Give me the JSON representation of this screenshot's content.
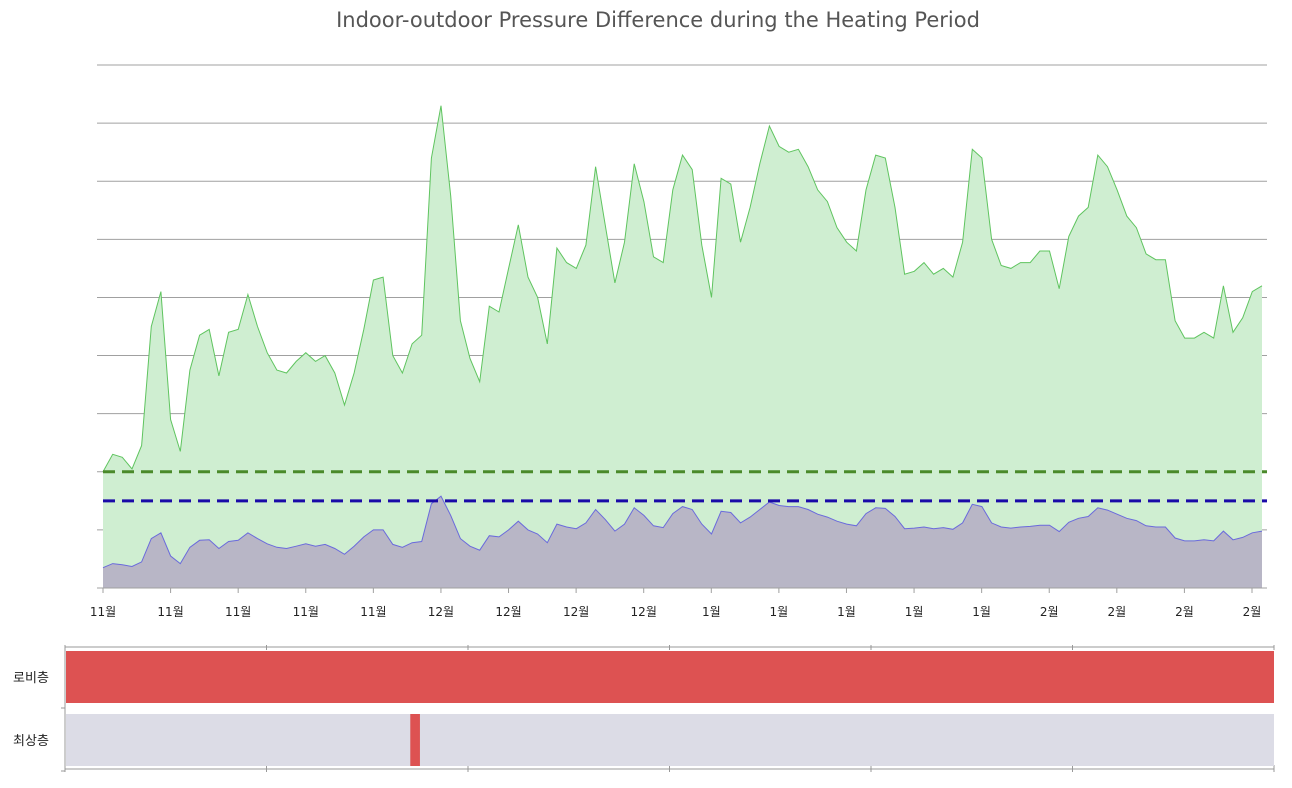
{
  "chart_data": [
    {
      "type": "area",
      "title": "Indoor-outdoor Pressure Difference during the Heating Period",
      "ylim": [
        0,
        9
      ],
      "grid": true,
      "x_tick_labels": [
        "11월",
        "11월",
        "11월",
        "11월",
        "11월",
        "12월",
        "12월",
        "12월",
        "12월",
        "1월",
        "1월",
        "1월",
        "1월",
        "1월",
        "2월",
        "2월",
        "2월",
        "2월"
      ],
      "reference_lines": [
        {
          "y": 2.0,
          "style": "dashed",
          "color": "#4a8a2a"
        },
        {
          "y": 1.5,
          "style": "dashed",
          "color": "#1a0aa8"
        }
      ],
      "series": [
        {
          "color": "#5fc45f",
          "fill": "#cfeed1",
          "values": [
            2.0,
            2.3,
            2.25,
            2.05,
            2.45,
            4.5,
            5.1,
            2.9,
            2.35,
            3.75,
            4.35,
            4.45,
            3.65,
            4.4,
            4.45,
            5.05,
            4.5,
            4.05,
            3.75,
            3.7,
            3.9,
            4.05,
            3.9,
            4.0,
            3.7,
            3.15,
            3.7,
            4.45,
            5.3,
            5.35,
            4.0,
            3.7,
            4.2,
            4.35,
            7.4,
            8.3,
            6.75,
            4.6,
            3.95,
            3.55,
            4.85,
            4.75,
            5.5,
            6.25,
            5.35,
            5.0,
            4.2,
            5.85,
            5.6,
            5.5,
            5.9,
            7.25,
            6.25,
            5.25,
            5.95,
            7.3,
            6.65,
            5.7,
            5.6,
            6.85,
            7.45,
            7.2,
            5.9,
            5.0,
            7.05,
            6.95,
            5.95,
            6.55,
            7.3,
            7.95,
            7.6,
            7.5,
            7.55,
            7.25,
            6.85,
            6.65,
            6.2,
            5.95,
            5.8,
            6.85,
            7.45,
            7.4,
            6.55,
            5.4,
            5.45,
            5.6,
            5.4,
            5.5,
            5.35,
            5.95,
            7.55,
            7.4,
            6.0,
            5.55,
            5.5,
            5.6,
            5.6,
            5.8,
            5.8,
            5.15,
            6.05,
            6.4,
            6.55,
            7.45,
            7.25,
            6.85,
            6.4,
            6.2,
            5.75,
            5.65,
            5.65,
            4.6,
            4.3,
            4.3,
            4.4,
            4.3,
            5.2,
            4.4,
            4.65,
            5.1,
            5.2
          ]
        },
        {
          "color": "#6a6adc",
          "fill": "#b8b6c6",
          "values": [
            0.35,
            0.42,
            0.4,
            0.37,
            0.45,
            0.85,
            0.95,
            0.55,
            0.42,
            0.7,
            0.82,
            0.83,
            0.68,
            0.8,
            0.82,
            0.95,
            0.85,
            0.76,
            0.7,
            0.68,
            0.72,
            0.76,
            0.72,
            0.75,
            0.68,
            0.58,
            0.72,
            0.88,
            1.0,
            1.0,
            0.75,
            0.7,
            0.78,
            0.8,
            1.45,
            1.58,
            1.25,
            0.85,
            0.72,
            0.65,
            0.9,
            0.88,
            1.0,
            1.15,
            1.0,
            0.93,
            0.78,
            1.1,
            1.05,
            1.02,
            1.12,
            1.35,
            1.18,
            0.98,
            1.1,
            1.38,
            1.25,
            1.07,
            1.04,
            1.28,
            1.4,
            1.35,
            1.1,
            0.93,
            1.32,
            1.3,
            1.12,
            1.22,
            1.35,
            1.48,
            1.42,
            1.4,
            1.4,
            1.35,
            1.27,
            1.22,
            1.15,
            1.1,
            1.07,
            1.28,
            1.38,
            1.37,
            1.23,
            1.02,
            1.03,
            1.05,
            1.02,
            1.04,
            1.01,
            1.12,
            1.44,
            1.4,
            1.12,
            1.05,
            1.03,
            1.05,
            1.06,
            1.08,
            1.08,
            0.97,
            1.13,
            1.2,
            1.23,
            1.38,
            1.34,
            1.27,
            1.2,
            1.16,
            1.07,
            1.05,
            1.05,
            0.86,
            0.81,
            0.81,
            0.83,
            0.81,
            0.98,
            0.83,
            0.87,
            0.95,
            0.98
          ]
        }
      ]
    },
    {
      "type": "timeline",
      "lanes": [
        {
          "label": "로비층",
          "color": "#dd5252",
          "bg": "#dcdce6",
          "active_ranges": [
            [
              0,
              1
            ]
          ]
        },
        {
          "label": "최상층",
          "color": "#dd5252",
          "bg": "#dcdce6",
          "active_ranges": [
            [
              0.285,
              0.293
            ]
          ]
        }
      ]
    }
  ]
}
